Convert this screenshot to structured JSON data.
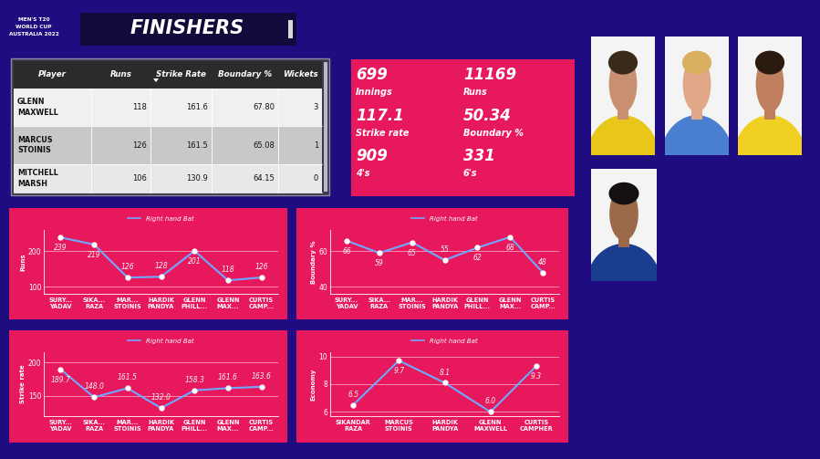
{
  "header": {
    "title": "FINISHERS",
    "logo": [
      "MEN'S T20",
      "WORLD CUP",
      "AUSTRALIA 2022"
    ]
  },
  "table": {
    "columns": [
      "Player",
      "Runs",
      "Strike Rate",
      "Boundary %",
      "Wickets"
    ],
    "rows": [
      [
        "GLENN MAXWELL",
        "118",
        "161.6",
        "67.80",
        "3"
      ],
      [
        "MARCUS STOINIS",
        "126",
        "161.5",
        "65.08",
        "1"
      ],
      [
        "MITCHELL MARSH",
        "106",
        "130.9",
        "64.15",
        "0"
      ]
    ]
  },
  "kpis": [
    {
      "value": 699,
      "label": "Innings"
    },
    {
      "value": 11169,
      "label": "Runs"
    },
    {
      "value": 117.1,
      "label": "Strike rate"
    },
    {
      "value": 50.34,
      "label": "Boundary %"
    },
    {
      "value": 909,
      "label": "4's"
    },
    {
      "value": 331,
      "label": "6's"
    }
  ],
  "chart_data": [
    {
      "type": "line",
      "ylabel": "Runs",
      "categories": [
        "SURY...\nYADAV",
        "SIKA...\nRAZA",
        "MAR...\nSTOINIS",
        "HARDIK\nPANDYA",
        "GLENN\nPHILL...",
        "GLENN\nMAX...",
        "CURTIS\nCAMP..."
      ],
      "series": [
        {
          "name": "Right hand Bat",
          "color": "#6fa8ff",
          "marker": "circle",
          "values": [
            239,
            219,
            126,
            128,
            201,
            118,
            126
          ]
        }
      ],
      "ylim": [
        80,
        260
      ],
      "yticks": [
        100,
        200
      ],
      "grid": true,
      "legend": "upper center",
      "data_labels": true
    },
    {
      "type": "line",
      "ylabel": "Boundary %",
      "categories": [
        "SURY...\nYADAV",
        "SIKA...\nRAZA",
        "MAR...\nSTOINIS",
        "HARDIK\nPANDYA",
        "GLENN\nPHILL...",
        "GLENN\nMAX...",
        "CURTIS\nCAMP..."
      ],
      "series": [
        {
          "name": "Right hand Bat",
          "color": "#6fa8ff",
          "marker": "circle",
          "values": [
            66,
            59,
            65,
            55,
            62,
            68,
            48
          ]
        }
      ],
      "ylim": [
        36,
        72
      ],
      "yticks": [
        40,
        60
      ],
      "grid": true,
      "legend": "upper center",
      "data_labels": true
    },
    {
      "type": "line",
      "ylabel": "Strike rate",
      "categories": [
        "SURY...\nYADAV",
        "SIKA...\nRAZA",
        "MAR...\nSTOINIS",
        "HARDIK\nPANDYA",
        "GLENN\nPHILL...",
        "GLENN\nMAX...",
        "CURTIS\nCAMP..."
      ],
      "series": [
        {
          "name": "Right hand Bat",
          "color": "#6fa8ff",
          "marker": "circle",
          "values": [
            189.7,
            148.0,
            161.5,
            132.0,
            158.3,
            161.6,
            163.6
          ]
        }
      ],
      "ylim": [
        120,
        215
      ],
      "yticks": [
        150,
        200
      ],
      "grid": true,
      "legend": "upper center",
      "data_labels": true
    },
    {
      "type": "line",
      "ylabel": "Economy",
      "categories": [
        "SIKANDAR\nRAZA",
        "MARCUS\nSTOINIS",
        "HARDIK\nPANDYA",
        "GLENN\nMAXWELL",
        "CURTIS\nCAMPHER"
      ],
      "series": [
        {
          "name": "Right hand Bat",
          "color": "#6fa8ff",
          "marker": "circle",
          "values": [
            6.5,
            9.7,
            8.1,
            6.0,
            9.3
          ]
        }
      ],
      "ylim": [
        5.7,
        10.3
      ],
      "yticks": [
        6,
        8,
        10
      ],
      "grid": true,
      "legend": "upper center",
      "data_labels": true
    }
  ]
}
